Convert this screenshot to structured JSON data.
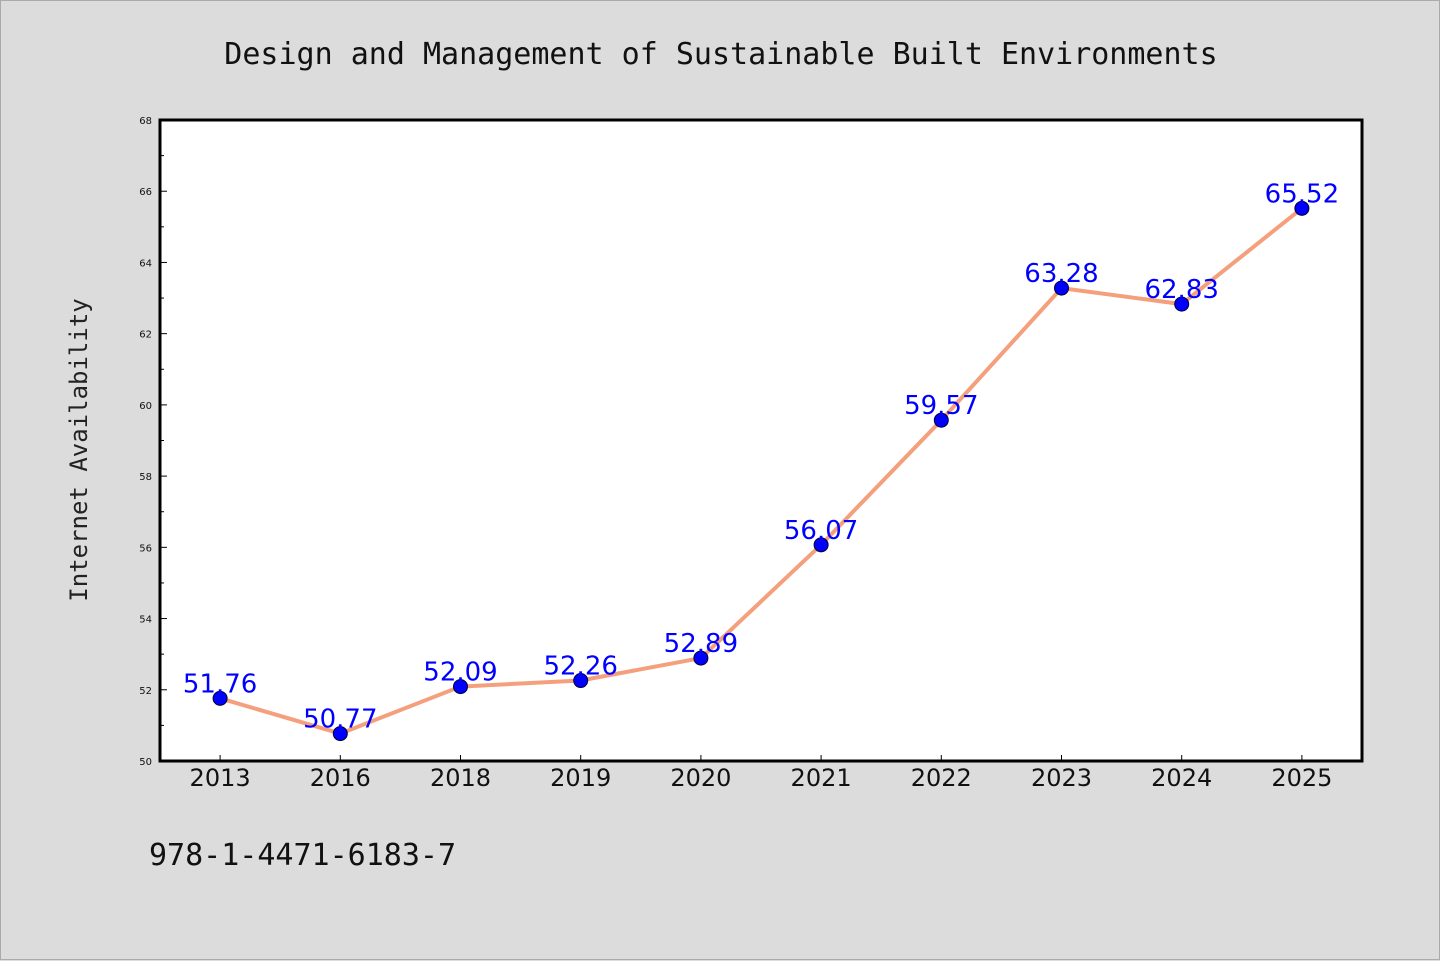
{
  "chart_data": {
    "type": "line",
    "title": "Design and Management of Sustainable Built Environments",
    "xlabel": "",
    "ylabel": "Internet Availability",
    "categories": [
      "2013",
      "2016",
      "2018",
      "2019",
      "2020",
      "2021",
      "2022",
      "2023",
      "2024",
      "2025"
    ],
    "series": [
      {
        "values": [
          51.76,
          50.77,
          52.09,
          52.26,
          52.89,
          56.07,
          59.57,
          63.28,
          62.83,
          65.52
        ],
        "data_labels": [
          "51.76",
          "50.77",
          "52.09",
          "52.26",
          "52.89",
          "56.07",
          "59.57",
          "63.28",
          "62.83",
          "65.52"
        ],
        "line_color": "#f4a07c",
        "marker_color": "#0000ff"
      }
    ],
    "ylim": [
      50,
      68
    ],
    "yticks": [
      "50",
      "52",
      "54",
      "56",
      "58",
      "60",
      "62",
      "64",
      "66",
      "68"
    ],
    "grid": false,
    "legend": "none"
  },
  "footer": {
    "isbn": "978-1-4471-6183-7"
  },
  "colors": {
    "background": "#dcdcdc",
    "plot_area": "#ffffff",
    "label_color": "#0000ff"
  }
}
